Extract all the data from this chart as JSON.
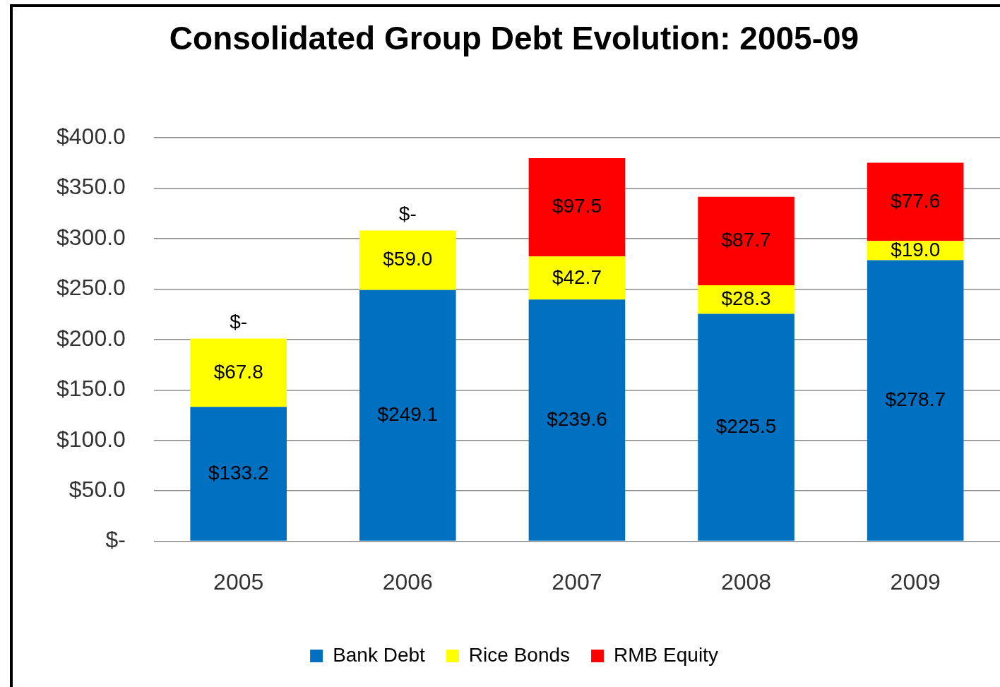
{
  "chart_data": {
    "type": "bar",
    "title": "Consolidated Group Debt Evolution: 2005-09",
    "categories": [
      "2005",
      "2006",
      "2007",
      "2008",
      "2009"
    ],
    "stacked": true,
    "series": [
      {
        "name": "Bank Debt",
        "color": "#0070c0",
        "values": [
          133.2,
          249.1,
          239.6,
          225.5,
          278.7
        ],
        "value_labels": [
          "$133.2",
          "$249.1",
          "$239.6",
          "$225.5",
          "$278.7"
        ]
      },
      {
        "name": "Rice Bonds",
        "color": "#ffff00",
        "values": [
          67.8,
          59.0,
          42.7,
          28.3,
          19.0
        ],
        "value_labels": [
          "$67.8",
          "$59.0",
          "$42.7",
          "$28.3",
          "$19.0"
        ]
      },
      {
        "name": "RMB Equity",
        "color": "#ff0000",
        "values": [
          0,
          0,
          97.5,
          87.7,
          77.6
        ],
        "value_labels": [
          "$-",
          "$-",
          "$97.5",
          "$87.7",
          "$77.6"
        ]
      }
    ],
    "ylim": [
      0,
      400
    ],
    "yticks": [
      {
        "value": 0,
        "label": "$-"
      },
      {
        "value": 50,
        "label": "$50.0"
      },
      {
        "value": 100,
        "label": "$100.0"
      },
      {
        "value": 150,
        "label": "$150.0"
      },
      {
        "value": 200,
        "label": "$200.0"
      },
      {
        "value": 250,
        "label": "$250.0"
      },
      {
        "value": 300,
        "label": "$300.0"
      },
      {
        "value": 350,
        "label": "$350.0"
      },
      {
        "value": 400,
        "label": "$400.0"
      }
    ],
    "grid": "y",
    "legend": "bottom"
  }
}
